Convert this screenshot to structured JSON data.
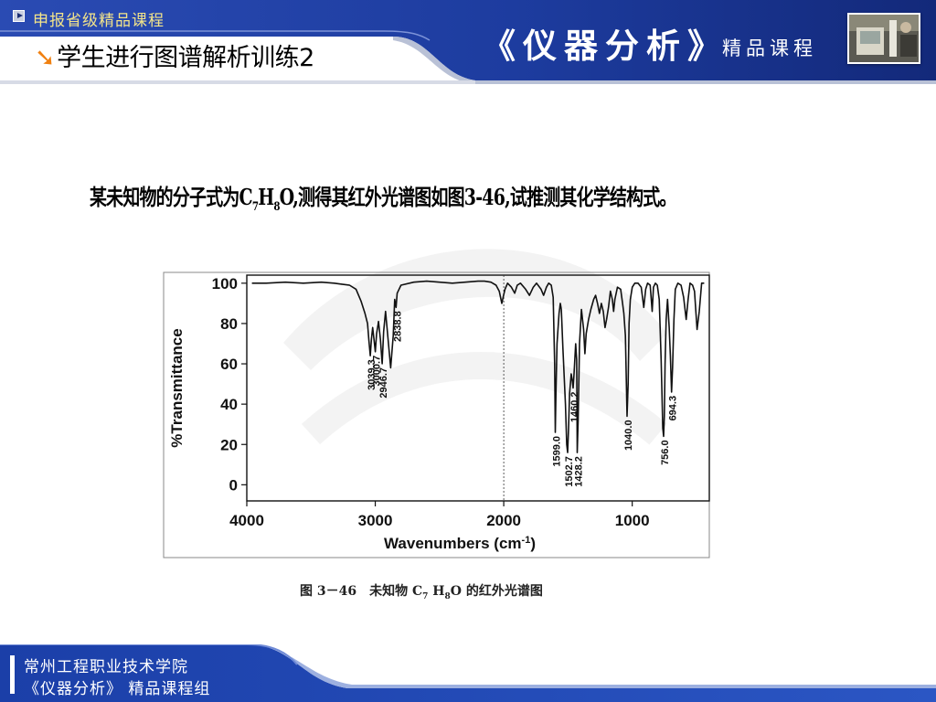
{
  "header": {
    "course_link": "申报省级精品课程",
    "slide_title": "学生进行图谱解析训练2",
    "brand_title": "《仪器分析》",
    "brand_subtitle": "精品课程",
    "colors": {
      "banner": "#1e3fa0",
      "accent": "#f08010",
      "link": "#f3e48a"
    },
    "icons": [
      "play-badge-icon",
      "orange-arrow-icon"
    ]
  },
  "problem": {
    "before": "某未知物的分子式为C",
    "sub1": "7",
    "mid1": "H",
    "sub2": "8",
    "after": "O,测得其红外光谱图如图3-46,试推测其化学结构式。"
  },
  "figure": {
    "caption_before": "图 3－46　未知物 C",
    "caption_sub1": "7",
    "caption_mid": " H",
    "caption_sub2": "8",
    "caption_after": "O 的红外光谱图"
  },
  "chart_data": {
    "type": "line",
    "xlabel": "Wavenumbers (cm",
    "xlabel_sup": "-1",
    "xlabel_close": ")",
    "ylabel": "%Transmittance",
    "x_ticks": [
      4000,
      3000,
      2000,
      1000
    ],
    "y_ticks": [
      0,
      20,
      40,
      60,
      80,
      100
    ],
    "xlim": [
      4000,
      400
    ],
    "ylim": [
      -8,
      104
    ],
    "x_reversed": true,
    "grid": false,
    "reference_line_x": 2000,
    "series": [
      {
        "points": [
          [
            3960,
            100
          ],
          [
            3850,
            100
          ],
          [
            3700,
            100.5
          ],
          [
            3560,
            100
          ],
          [
            3420,
            100.5
          ],
          [
            3320,
            100
          ],
          [
            3260,
            99.5
          ],
          [
            3200,
            99
          ],
          [
            3150,
            97
          ],
          [
            3110,
            91
          ],
          [
            3080,
            85
          ],
          [
            3060,
            80
          ],
          [
            3050,
            72
          ],
          [
            3039,
            64
          ],
          [
            3030,
            72
          ],
          [
            3020,
            78
          ],
          [
            3010,
            72
          ],
          [
            3000,
            66
          ],
          [
            2990,
            75
          ],
          [
            2975,
            81
          ],
          [
            2960,
            72
          ],
          [
            2946,
            60
          ],
          [
            2935,
            76
          ],
          [
            2920,
            86
          ],
          [
            2900,
            72
          ],
          [
            2880,
            58
          ],
          [
            2860,
            74
          ],
          [
            2849,
            92
          ],
          [
            2838,
            88
          ],
          [
            2830,
            95
          ],
          [
            2800,
            99
          ],
          [
            2700,
            100.5
          ],
          [
            2600,
            101
          ],
          [
            2500,
            100.5
          ],
          [
            2400,
            100
          ],
          [
            2300,
            100.5
          ],
          [
            2200,
            101
          ],
          [
            2150,
            101
          ],
          [
            2100,
            100.5
          ],
          [
            2060,
            99
          ],
          [
            2035,
            96
          ],
          [
            2015,
            90
          ],
          [
            2005,
            93
          ],
          [
            1990,
            97
          ],
          [
            1970,
            100
          ],
          [
            1940,
            98
          ],
          [
            1915,
            95
          ],
          [
            1895,
            99
          ],
          [
            1870,
            100
          ],
          [
            1830,
            97
          ],
          [
            1800,
            94
          ],
          [
            1770,
            98
          ],
          [
            1745,
            100
          ],
          [
            1710,
            97
          ],
          [
            1690,
            94
          ],
          [
            1668,
            98
          ],
          [
            1650,
            100
          ],
          [
            1630,
            99
          ],
          [
            1615,
            93
          ],
          [
            1604,
            60
          ],
          [
            1599,
            26
          ],
          [
            1594,
            45
          ],
          [
            1585,
            70
          ],
          [
            1570,
            85
          ],
          [
            1560,
            90
          ],
          [
            1552,
            87
          ],
          [
            1540,
            68
          ],
          [
            1520,
            40
          ],
          [
            1510,
            20
          ],
          [
            1503,
            16
          ],
          [
            1496,
            28
          ],
          [
            1488,
            45
          ],
          [
            1475,
            55
          ],
          [
            1467,
            52
          ],
          [
            1460,
            48
          ],
          [
            1453,
            55
          ],
          [
            1440,
            70
          ],
          [
            1432,
            62
          ],
          [
            1428,
            16
          ],
          [
            1421,
            32
          ],
          [
            1410,
            70
          ],
          [
            1395,
            87
          ],
          [
            1378,
            77
          ],
          [
            1368,
            65
          ],
          [
            1358,
            75
          ],
          [
            1340,
            82
          ],
          [
            1322,
            87
          ],
          [
            1300,
            92
          ],
          [
            1285,
            94
          ],
          [
            1270,
            90
          ],
          [
            1255,
            85
          ],
          [
            1240,
            90
          ],
          [
            1225,
            86
          ],
          [
            1212,
            78
          ],
          [
            1200,
            82
          ],
          [
            1185,
            88
          ],
          [
            1170,
            96
          ],
          [
            1155,
            92
          ],
          [
            1145,
            86
          ],
          [
            1135,
            92
          ],
          [
            1115,
            98
          ],
          [
            1090,
            97
          ],
          [
            1075,
            90
          ],
          [
            1065,
            85
          ],
          [
            1053,
            74
          ],
          [
            1040,
            34
          ],
          [
            1032,
            50
          ],
          [
            1025,
            80
          ],
          [
            1015,
            92
          ],
          [
            1000,
            98
          ],
          [
            980,
            100
          ],
          [
            955,
            100
          ],
          [
            930,
            98
          ],
          [
            910,
            88
          ],
          [
            895,
            97
          ],
          [
            880,
            100
          ],
          [
            860,
            99
          ],
          [
            845,
            86
          ],
          [
            835,
            98
          ],
          [
            820,
            100
          ],
          [
            805,
            99
          ],
          [
            790,
            92
          ],
          [
            775,
            62
          ],
          [
            762,
            28
          ],
          [
            756,
            24
          ],
          [
            750,
            34
          ],
          [
            744,
            60
          ],
          [
            736,
            82
          ],
          [
            725,
            92
          ],
          [
            712,
            78
          ],
          [
            703,
            64
          ],
          [
            694,
            46
          ],
          [
            686,
            58
          ],
          [
            675,
            82
          ],
          [
            665,
            97
          ],
          [
            645,
            100
          ],
          [
            620,
            99
          ],
          [
            600,
            93
          ],
          [
            580,
            82
          ],
          [
            565,
            92
          ],
          [
            550,
            100
          ],
          [
            530,
            99
          ],
          [
            515,
            96
          ],
          [
            495,
            77
          ],
          [
            478,
            86
          ],
          [
            460,
            100
          ],
          [
            440,
            100
          ]
        ]
      }
    ],
    "peak_labels": [
      {
        "label": "3039.3",
        "x": 3039,
        "y": 64
      },
      {
        "label": "3000.7",
        "x": 3000,
        "y": 66
      },
      {
        "label": "2946.7",
        "x": 2946,
        "y": 60
      },
      {
        "label": "2838.8",
        "x": 2838,
        "y": 88
      },
      {
        "label": "1599.0",
        "x": 1599,
        "y": 26
      },
      {
        "label": "1502.7",
        "x": 1503,
        "y": 16
      },
      {
        "label": "1460.2",
        "x": 1460,
        "y": 48
      },
      {
        "label": "1428.2",
        "x": 1428,
        "y": 16
      },
      {
        "label": "1040.0",
        "x": 1040,
        "y": 34
      },
      {
        "label": "756.0",
        "x": 756,
        "y": 24
      },
      {
        "label": "694.3",
        "x": 694,
        "y": 46
      }
    ]
  },
  "footer": {
    "school": "常州工程职业技术学院",
    "group": "《仪器分析》 精品课程组"
  }
}
